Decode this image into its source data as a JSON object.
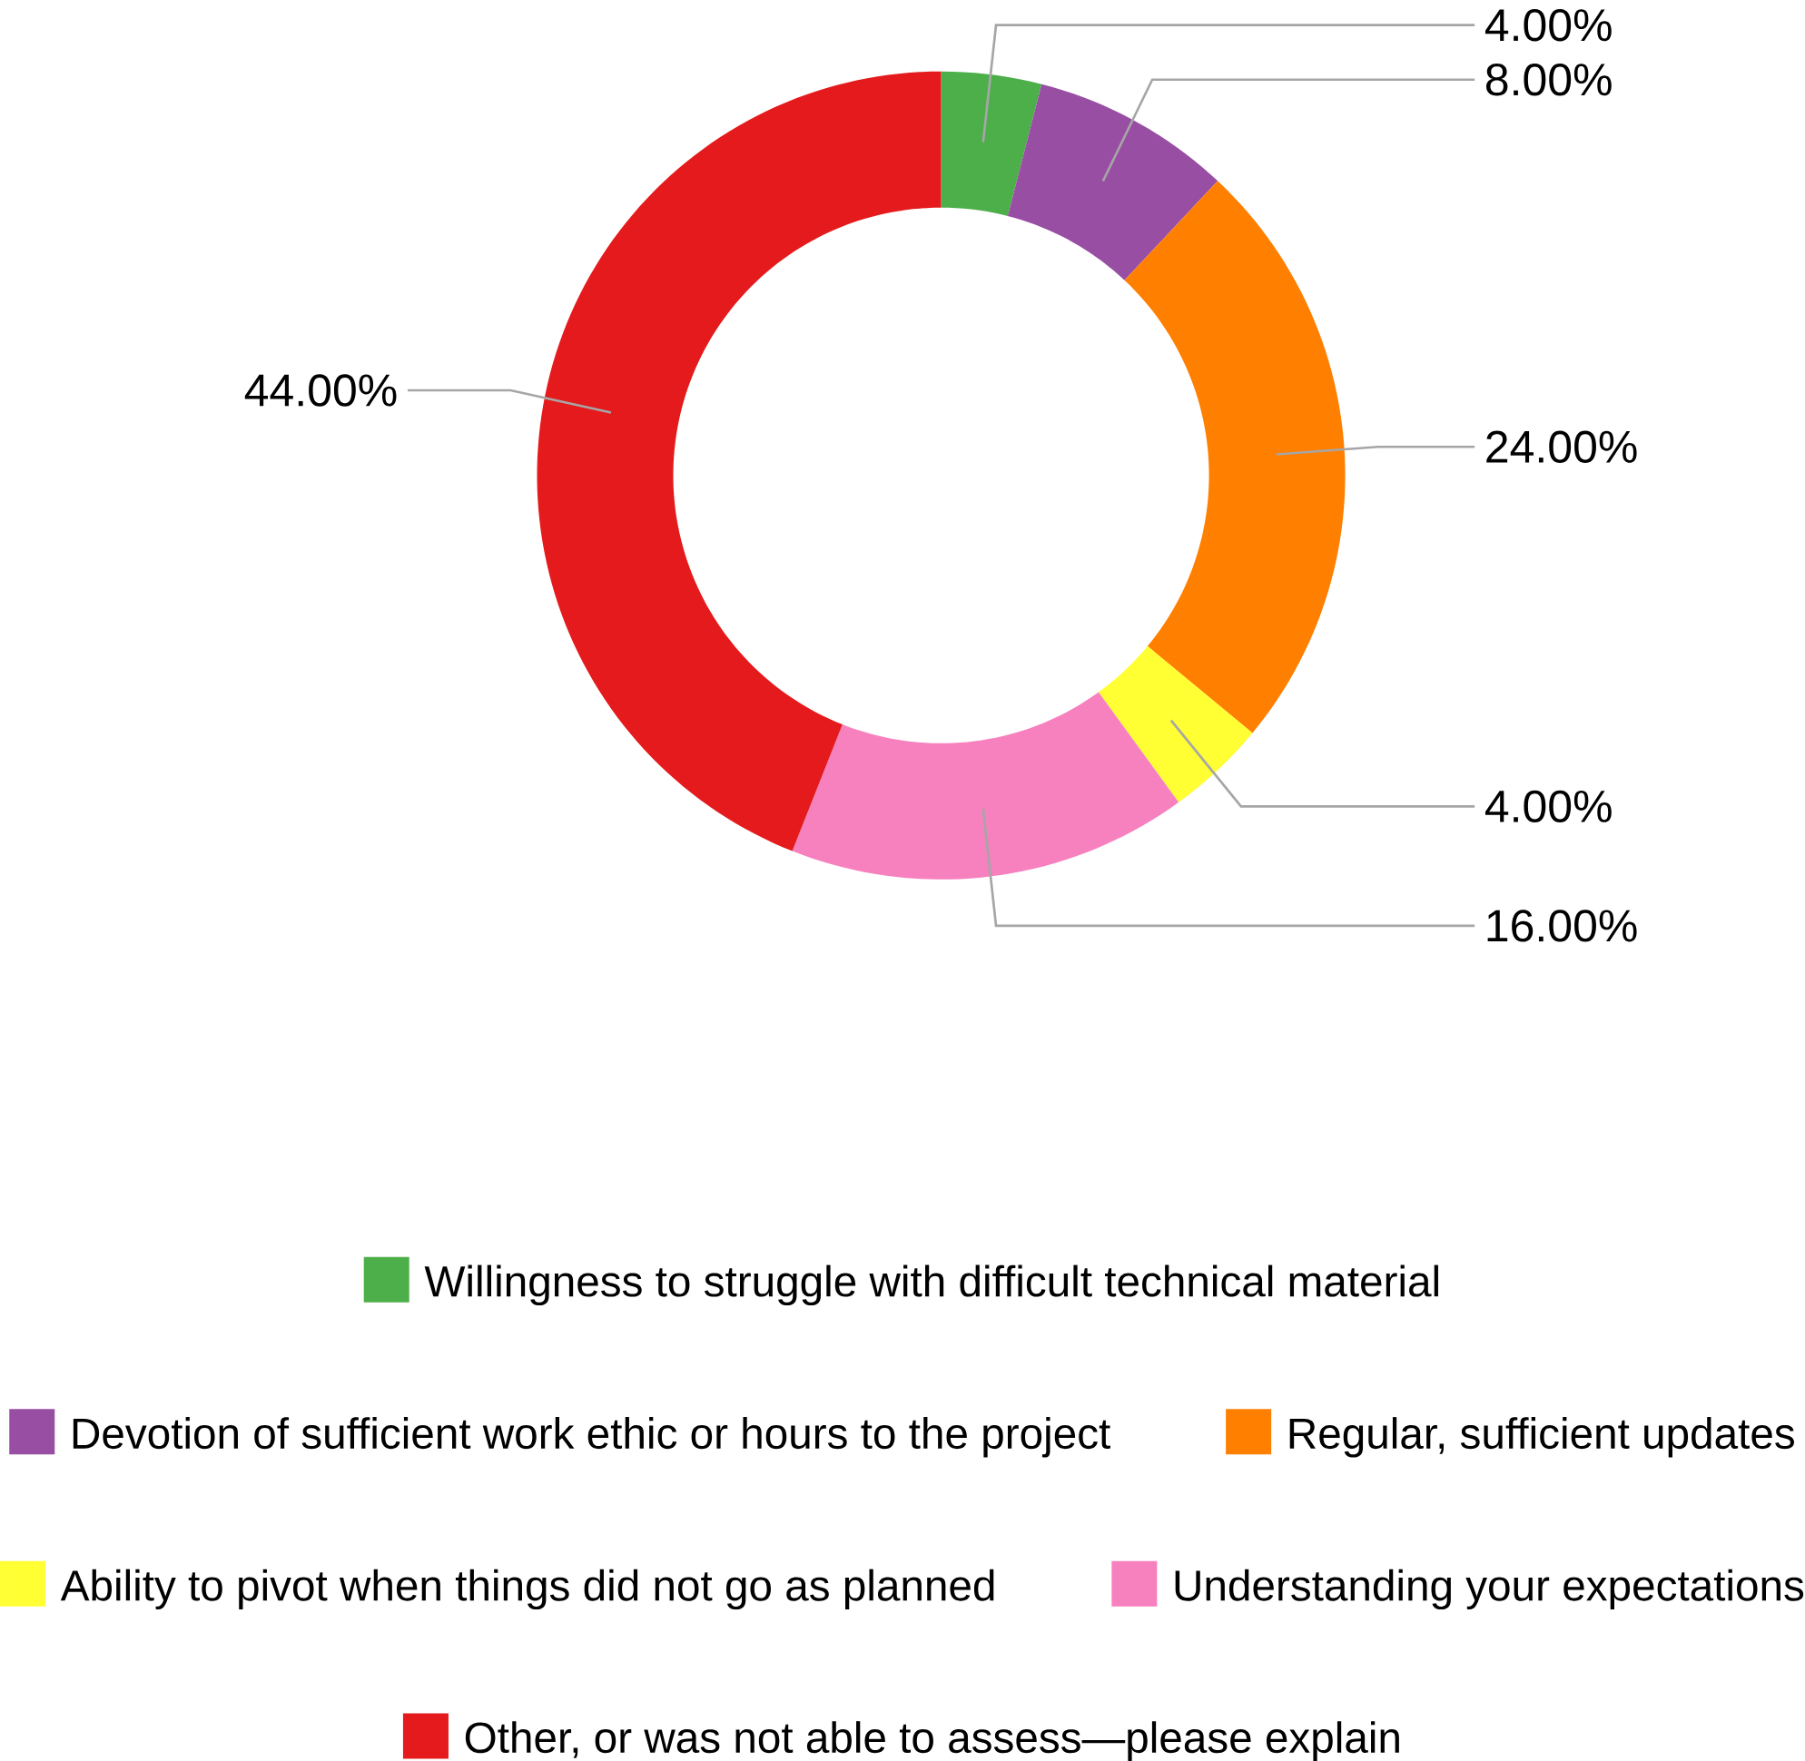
{
  "chart_data": {
    "type": "donut",
    "categories": [
      "Willingness to struggle with difficult technical material",
      "Devotion of sufficient work ethic or hours to the project",
      "Regular, sufficient updates",
      "Ability to pivot when things did not go as planned",
      "Understanding your expectations",
      "Other, or was not able to assess—please explain"
    ],
    "values": [
      4,
      8,
      24,
      4,
      16,
      44
    ],
    "value_labels": [
      "4.00%",
      "8.00%",
      "24.00%",
      "4.00%",
      "16.00%",
      "44.00%"
    ],
    "colors": [
      "#4daf4a",
      "#984ea3",
      "#ff7f00",
      "#ffff33",
      "#f781bf",
      "#e41a1c"
    ],
    "legend": "bottom"
  }
}
